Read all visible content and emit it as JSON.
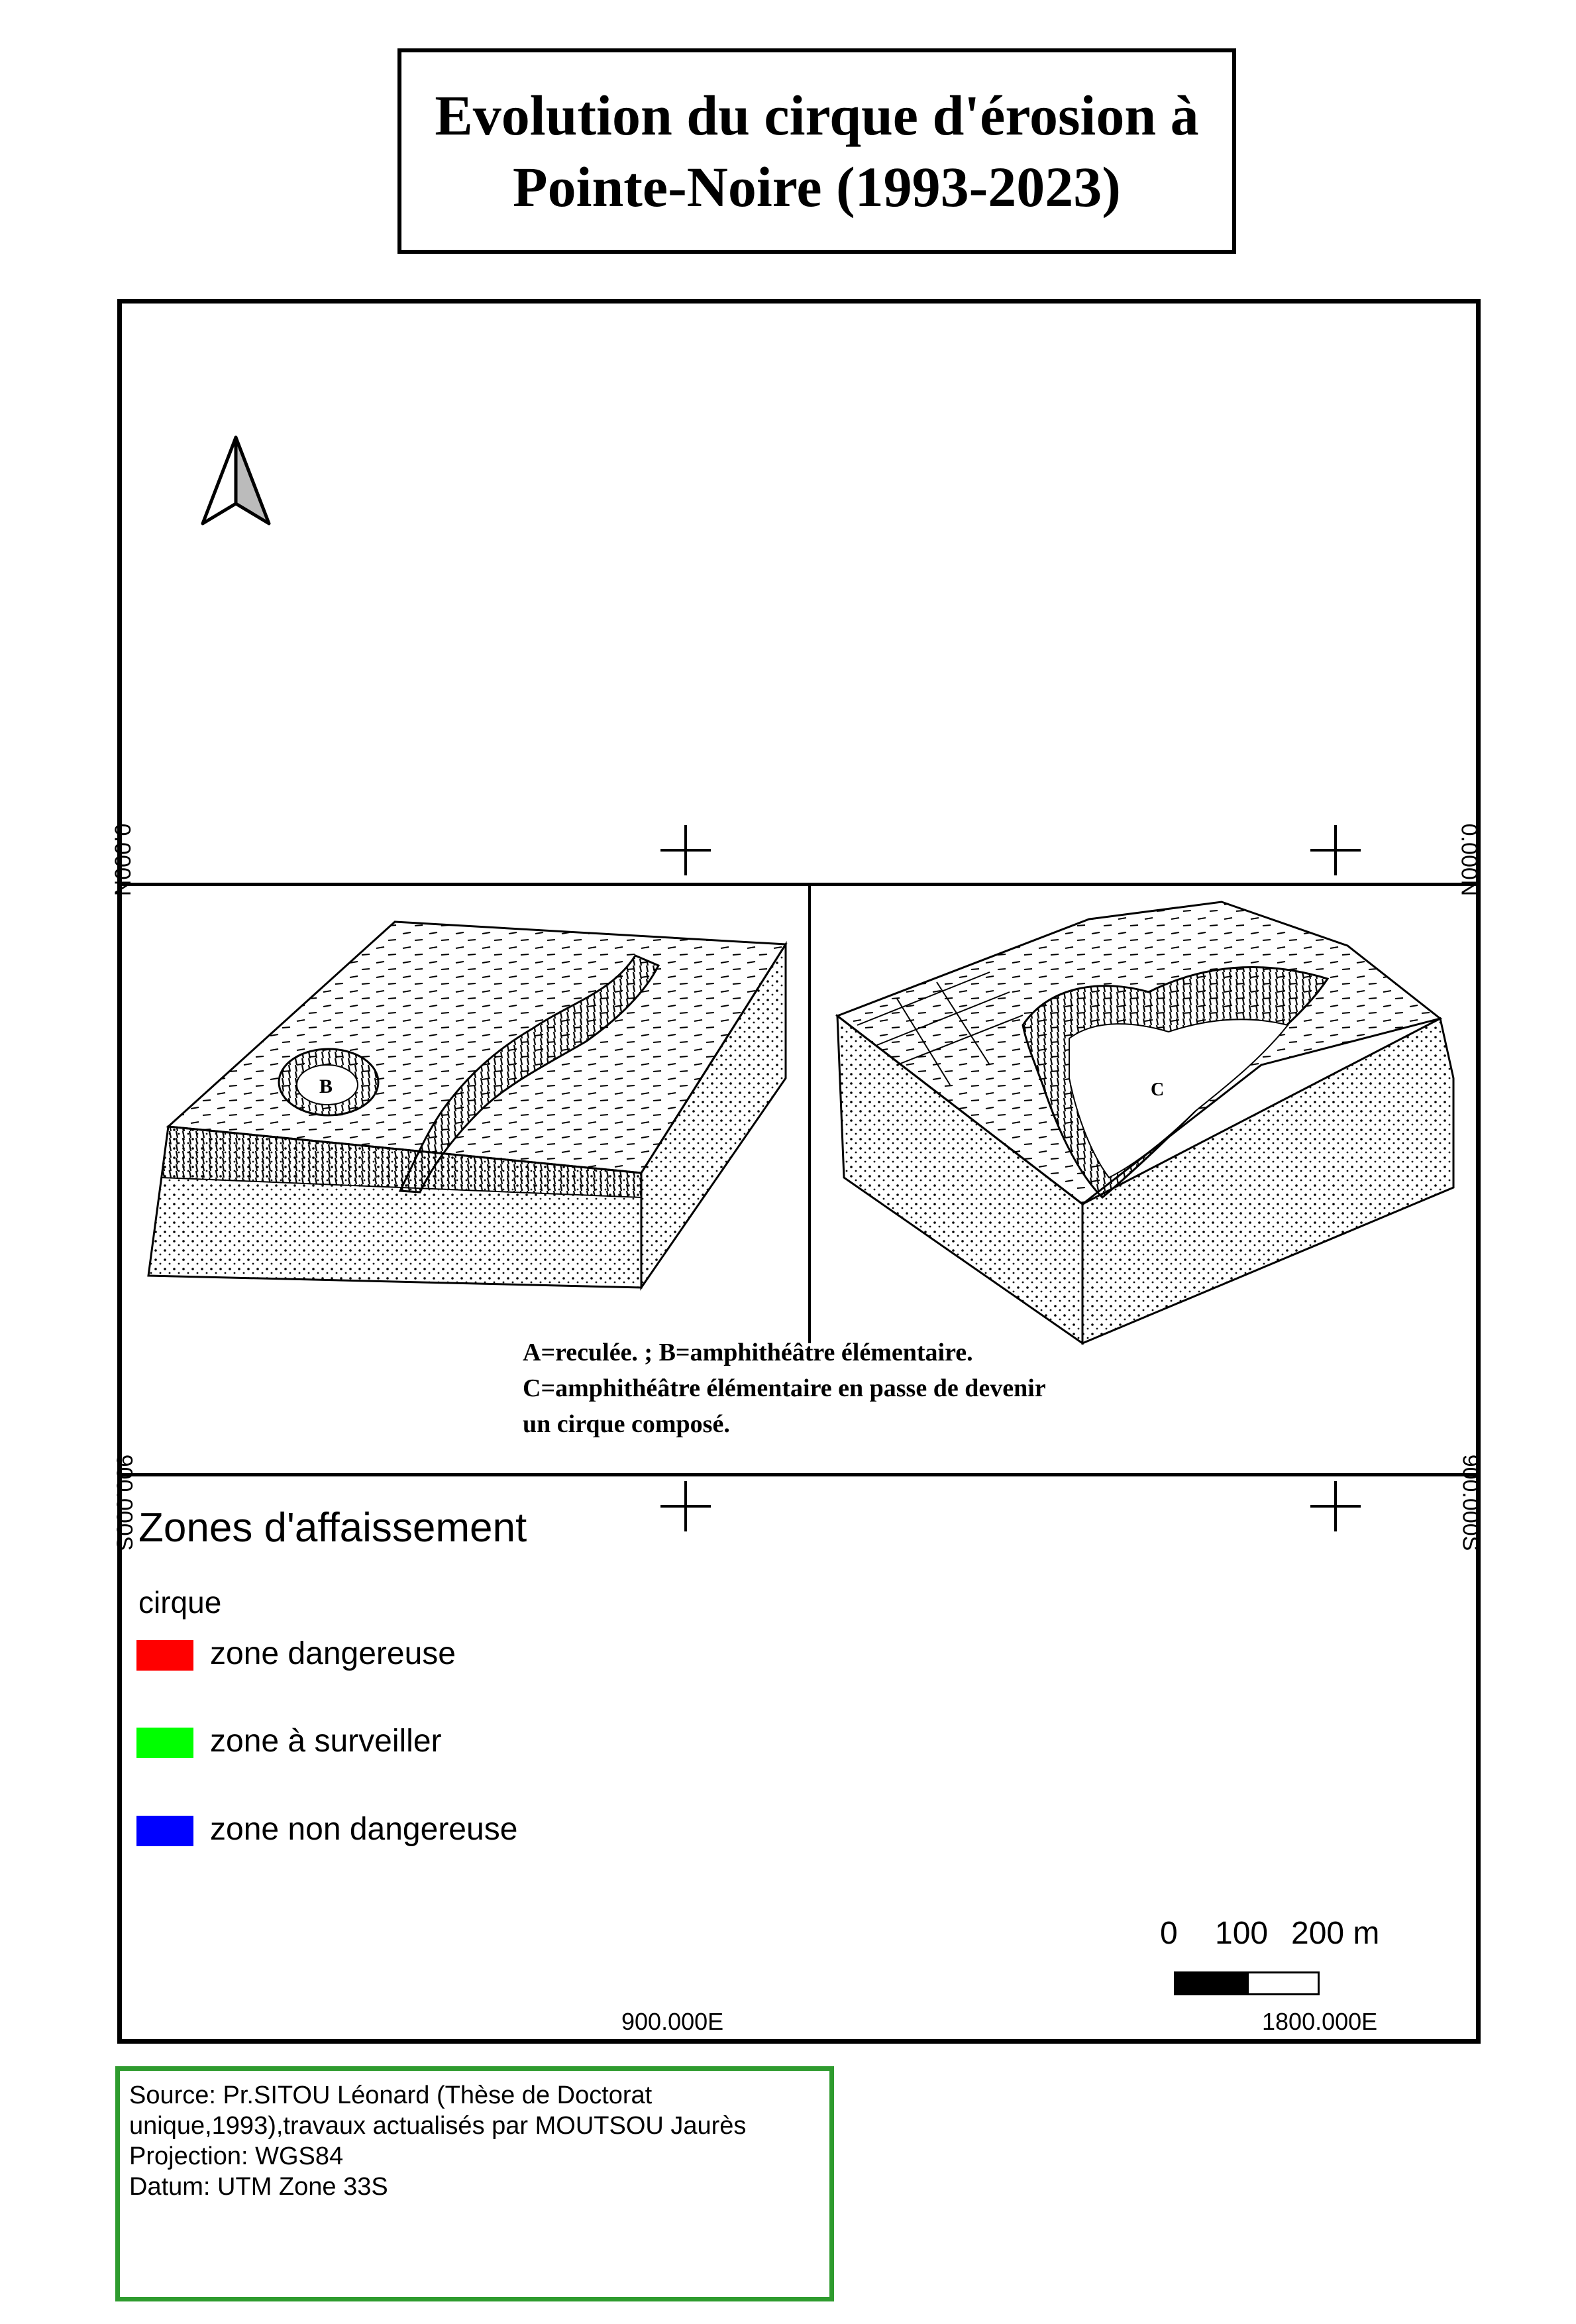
{
  "title": "Evolution du cirque d'érosion à\nPointe-Noire (1993-2023)",
  "north_arrow": "north-arrow-icon",
  "grid": {
    "left_top_label": "0.000N",
    "right_top_label": "0.000N",
    "left_bottom_label": "900.000S",
    "right_bottom_label": "900.000S",
    "bottom_labels": [
      "900.000E",
      "1800.000E"
    ]
  },
  "figure": {
    "caption_lines": [
      "A=reculée.  ; B=amphithéâtre élémentaire.",
      "C=amphithéâtre élémentaire en passe de devenir",
      "un cirque composé."
    ],
    "block_labels": [
      "B",
      "C"
    ]
  },
  "legend": {
    "title": "Zones d'affaissement",
    "group": "cirque",
    "items": [
      {
        "label": "zone dangereuse",
        "color": "#ff0000"
      },
      {
        "label": "zone à surveiller",
        "color": "#00ff00"
      },
      {
        "label": "zone non dangereuse",
        "color": "#0000ff"
      }
    ]
  },
  "scalebar": {
    "labels": [
      "0",
      "100",
      "200 m"
    ]
  },
  "source": {
    "lines": [
      "Source: Pr.SITOU Léonard (Thèse de Doctorat",
      "unique,1993),travaux actualisés par MOUTSOU Jaurès",
      "Projection: WGS84",
      "Datum: UTM Zone 33S"
    ]
  },
  "colors": {
    "source_border": "#2e9b2e"
  }
}
